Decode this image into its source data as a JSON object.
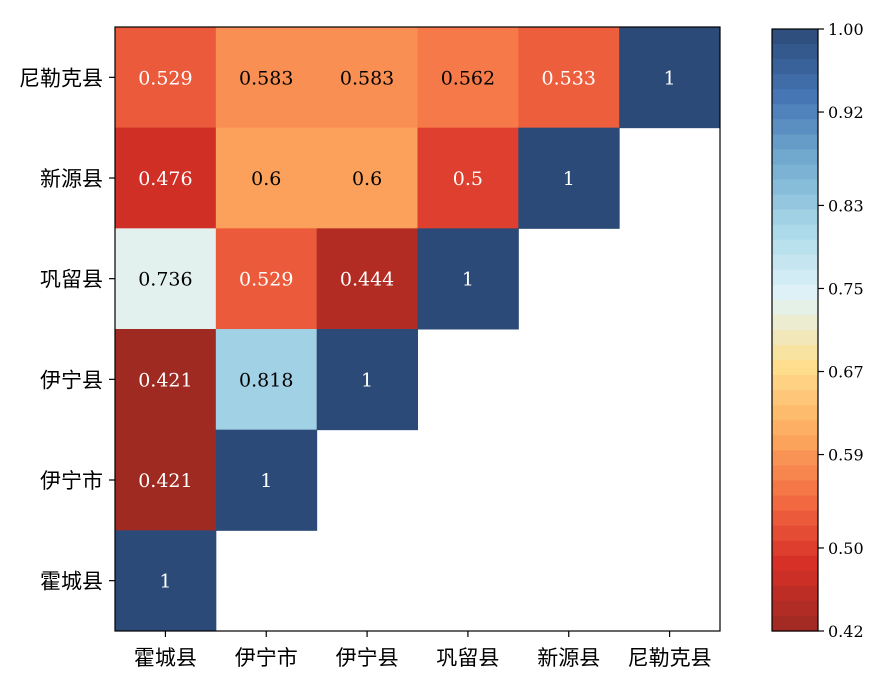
{
  "chart_data": {
    "type": "heatmap",
    "x_categories": [
      "霍城县",
      "伊宁市",
      "伊宁县",
      "巩留县",
      "新源县",
      "尼勒克县"
    ],
    "y_categories": [
      "尼勒克县",
      "新源县",
      "巩留县",
      "伊宁县",
      "伊宁市",
      "霍城县"
    ],
    "cells": [
      {
        "x": "霍城县",
        "y": "尼勒克县",
        "value": 0.529,
        "label": "0.529"
      },
      {
        "x": "伊宁市",
        "y": "尼勒克县",
        "value": 0.583,
        "label": "0.583"
      },
      {
        "x": "伊宁县",
        "y": "尼勒克县",
        "value": 0.583,
        "label": "0.583"
      },
      {
        "x": "巩留县",
        "y": "尼勒克县",
        "value": 0.562,
        "label": "0.562"
      },
      {
        "x": "新源县",
        "y": "尼勒克县",
        "value": 0.533,
        "label": "0.533"
      },
      {
        "x": "尼勒克县",
        "y": "尼勒克县",
        "value": 1,
        "label": "1"
      },
      {
        "x": "霍城县",
        "y": "新源县",
        "value": 0.476,
        "label": "0.476"
      },
      {
        "x": "伊宁市",
        "y": "新源县",
        "value": 0.6,
        "label": "0.6"
      },
      {
        "x": "伊宁县",
        "y": "新源县",
        "value": 0.6,
        "label": "0.6"
      },
      {
        "x": "巩留县",
        "y": "新源县",
        "value": 0.5,
        "label": "0.5"
      },
      {
        "x": "新源县",
        "y": "新源县",
        "value": 1,
        "label": "1"
      },
      {
        "x": "霍城县",
        "y": "巩留县",
        "value": 0.736,
        "label": "0.736"
      },
      {
        "x": "伊宁市",
        "y": "巩留县",
        "value": 0.529,
        "label": "0.529"
      },
      {
        "x": "伊宁县",
        "y": "巩留县",
        "value": 0.444,
        "label": "0.444"
      },
      {
        "x": "巩留县",
        "y": "巩留县",
        "value": 1,
        "label": "1"
      },
      {
        "x": "霍城县",
        "y": "伊宁县",
        "value": 0.421,
        "label": "0.421"
      },
      {
        "x": "伊宁市",
        "y": "伊宁县",
        "value": 0.818,
        "label": "0.818"
      },
      {
        "x": "伊宁县",
        "y": "伊宁县",
        "value": 1,
        "label": "1"
      },
      {
        "x": "霍城县",
        "y": "伊宁市",
        "value": 0.421,
        "label": "0.421"
      },
      {
        "x": "伊宁市",
        "y": "伊宁市",
        "value": 1,
        "label": "1"
      },
      {
        "x": "霍城县",
        "y": "霍城县",
        "value": 1,
        "label": "1"
      }
    ],
    "colorbar": {
      "min": 0.42,
      "max": 1.0,
      "ticks": [
        1.0,
        0.92,
        0.83,
        0.75,
        0.67,
        0.59,
        0.5,
        0.42
      ],
      "tick_labels": [
        "1.00",
        "0.92",
        "0.83",
        "0.75",
        "0.67",
        "0.59",
        "0.50",
        "0.42"
      ]
    },
    "colormap": [
      "#9e2a22",
      "#d73027",
      "#f46d43",
      "#fdae61",
      "#fee090",
      "#e0f3f8",
      "#abd9e9",
      "#74add1",
      "#4575b4",
      "#2c4a78"
    ],
    "title": "",
    "xlabel": "",
    "ylabel": ""
  }
}
